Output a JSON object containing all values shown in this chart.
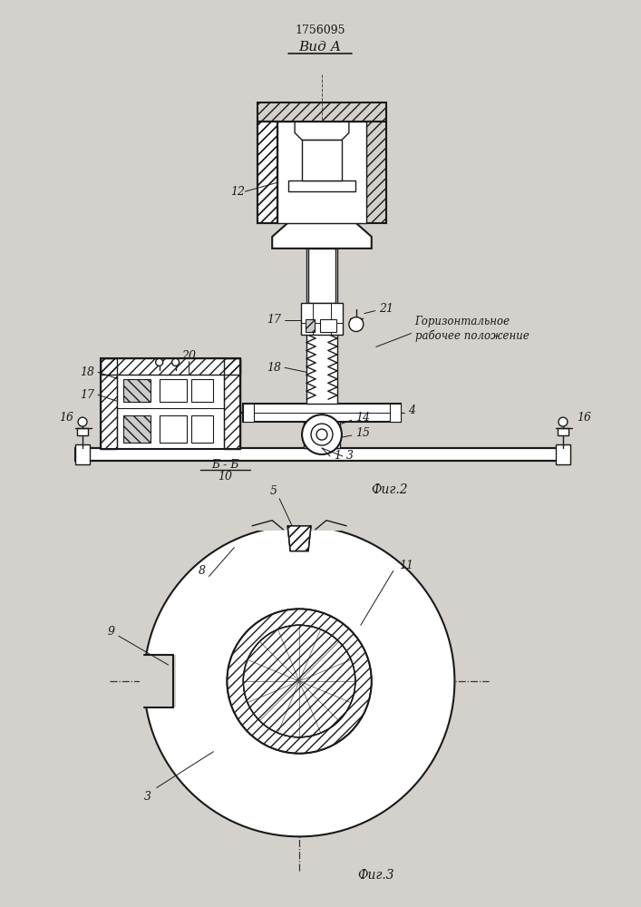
{
  "title": "1756095",
  "view_label": "Вид А",
  "fig2_label": "Фиг.2",
  "fig3_label": "Фиг.3",
  "section_label": "Б - Б",
  "section_num": "10",
  "annotation_text": "Горизонтальное\nрабочее положение",
  "bg_color": "#d4d0cb",
  "line_color": "#1a1a1a",
  "fig_width": 7.07,
  "fig_height": 10.0
}
